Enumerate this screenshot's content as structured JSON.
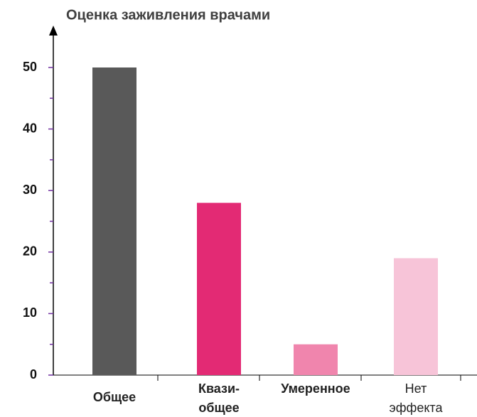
{
  "chart_data": {
    "type": "bar",
    "title": "Оценка заживления врачами",
    "categories": [
      "Общее",
      "Квази-общее",
      "Умеренное",
      "Нет эффекта"
    ],
    "values": [
      50,
      28,
      5,
      19
    ],
    "colors": [
      "#595959",
      "#e32a74",
      "#f085ad",
      "#f7c4d8"
    ],
    "ylim": [
      0,
      50
    ],
    "yticks": [
      0,
      10,
      20,
      30,
      40,
      50
    ],
    "minor_yticks": [
      5,
      15,
      25,
      35,
      45
    ]
  }
}
